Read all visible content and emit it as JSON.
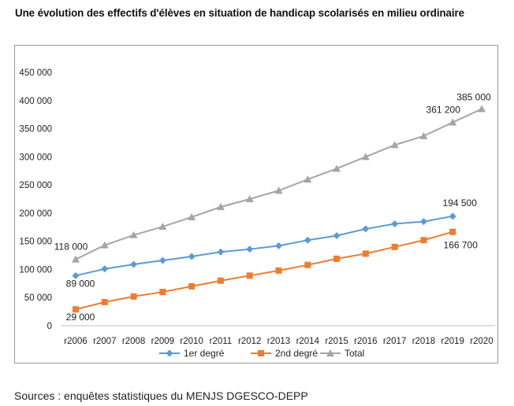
{
  "title": "Une évolution des effectifs d'élèves en situation de handicap scolarisés en milieu ordinaire",
  "source": "Sources : enquêtes statistiques du MENJS DGESCO-DEPP",
  "colors": {
    "series1": "#5b9bd5",
    "series2": "#ed7d31",
    "series3": "#a5a5a5"
  },
  "chart_data": {
    "type": "line",
    "categories": [
      "r2006",
      "r2007",
      "r2008",
      "r2009",
      "r2010",
      "r2011",
      "r2012",
      "r2013",
      "r2014",
      "r2015",
      "r2016",
      "r2017",
      "r2018",
      "r2019",
      "r2020"
    ],
    "y_ticks": [
      "0",
      "50 000",
      "100 000",
      "150 000",
      "200 000",
      "250 000",
      "300 000",
      "350 000",
      "400 000",
      "450 000"
    ],
    "ylim": [
      0,
      450000
    ],
    "grid": false,
    "legend_position": "bottom",
    "series": [
      {
        "name": "1er degré",
        "marker": "diamond",
        "values": [
          89000,
          101000,
          109000,
          116000,
          123000,
          131000,
          136000,
          142000,
          152000,
          160000,
          172000,
          181000,
          185000,
          194500,
          null
        ]
      },
      {
        "name": "2nd degré",
        "marker": "square",
        "values": [
          29000,
          42000,
          52000,
          60000,
          70000,
          80000,
          89000,
          98000,
          108000,
          119000,
          128000,
          140000,
          152000,
          166700,
          null
        ]
      },
      {
        "name": "Total",
        "marker": "triangle",
        "values": [
          118000,
          143000,
          161000,
          176000,
          193000,
          211000,
          225000,
          240000,
          260000,
          279000,
          300000,
          321000,
          337000,
          361200,
          385000
        ]
      }
    ],
    "data_labels": [
      {
        "series": 2,
        "index": 0,
        "text": "118 000"
      },
      {
        "series": 2,
        "index": 13,
        "text": "361 200"
      },
      {
        "series": 2,
        "index": 14,
        "text": "385 000"
      },
      {
        "series": 0,
        "index": 0,
        "text": "89 000"
      },
      {
        "series": 0,
        "index": 13,
        "text": "194 500"
      },
      {
        "series": 1,
        "index": 0,
        "text": "29 000"
      },
      {
        "series": 1,
        "index": 13,
        "text": "166 700"
      }
    ]
  }
}
